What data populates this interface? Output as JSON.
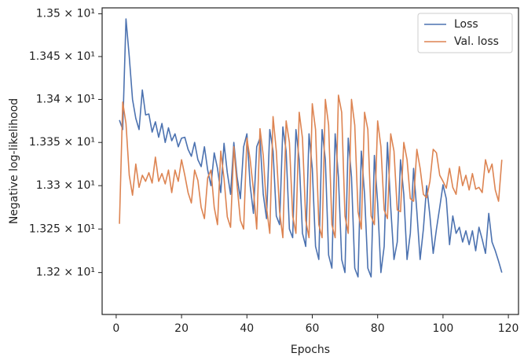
{
  "chart_data": {
    "type": "line",
    "xlabel": "Epochs",
    "ylabel": "Negative log-likelihood",
    "x": [
      1,
      2,
      3,
      4,
      5,
      6,
      7,
      8,
      9,
      10,
      11,
      12,
      13,
      14,
      15,
      16,
      17,
      18,
      19,
      20,
      21,
      22,
      23,
      24,
      25,
      26,
      27,
      28,
      29,
      30,
      31,
      32,
      33,
      34,
      35,
      36,
      37,
      38,
      39,
      40,
      41,
      42,
      43,
      44,
      45,
      46,
      47,
      48,
      49,
      50,
      51,
      52,
      53,
      54,
      55,
      56,
      57,
      58,
      59,
      60,
      61,
      62,
      63,
      64,
      65,
      66,
      67,
      68,
      69,
      70,
      71,
      72,
      73,
      74,
      75,
      76,
      77,
      78,
      79,
      80,
      81,
      82,
      83,
      84,
      85,
      86,
      87,
      88,
      89,
      90,
      91,
      92,
      93,
      94,
      95,
      96,
      97,
      98,
      99,
      100,
      101,
      102,
      103,
      104,
      105,
      106,
      107,
      108,
      109,
      110,
      111,
      112,
      113,
      114,
      115,
      116,
      117,
      118
    ],
    "series": [
      {
        "name": "Loss",
        "color": "#4c72b0",
        "values": [
          13.376,
          13.365,
          13.494,
          13.45,
          13.4,
          13.378,
          13.365,
          13.411,
          13.382,
          13.383,
          13.362,
          13.374,
          13.356,
          13.372,
          13.35,
          13.367,
          13.352,
          13.36,
          13.345,
          13.355,
          13.356,
          13.342,
          13.334,
          13.35,
          13.33,
          13.322,
          13.345,
          13.318,
          13.3,
          13.338,
          13.32,
          13.292,
          13.349,
          13.315,
          13.29,
          13.35,
          13.31,
          13.285,
          13.345,
          13.36,
          13.3,
          13.268,
          13.345,
          13.355,
          13.29,
          13.262,
          13.365,
          13.34,
          13.265,
          13.255,
          13.368,
          13.34,
          13.25,
          13.24,
          13.365,
          13.33,
          13.245,
          13.23,
          13.36,
          13.32,
          13.23,
          13.215,
          13.365,
          13.33,
          13.22,
          13.205,
          13.36,
          13.31,
          13.215,
          13.2,
          13.355,
          13.31,
          13.205,
          13.195,
          13.34,
          13.29,
          13.205,
          13.195,
          13.335,
          13.28,
          13.2,
          13.23,
          13.35,
          13.275,
          13.215,
          13.235,
          13.33,
          13.29,
          13.215,
          13.245,
          13.32,
          13.27,
          13.215,
          13.25,
          13.3,
          13.265,
          13.222,
          13.25,
          13.275,
          13.301,
          13.285,
          13.232,
          13.265,
          13.245,
          13.252,
          13.235,
          13.248,
          13.232,
          13.248,
          13.225,
          13.252,
          13.238,
          13.222,
          13.268,
          13.235,
          13.225,
          13.213,
          13.2
        ]
      },
      {
        "name": "Val. loss",
        "color": "#dd8452",
        "values": [
          13.256,
          13.397,
          13.372,
          13.312,
          13.289,
          13.325,
          13.298,
          13.312,
          13.305,
          13.315,
          13.303,
          13.333,
          13.305,
          13.314,
          13.302,
          13.318,
          13.292,
          13.318,
          13.305,
          13.33,
          13.312,
          13.292,
          13.28,
          13.318,
          13.306,
          13.275,
          13.262,
          13.309,
          13.318,
          13.275,
          13.255,
          13.34,
          13.308,
          13.264,
          13.252,
          13.345,
          13.3,
          13.26,
          13.25,
          13.355,
          13.33,
          13.295,
          13.25,
          13.366,
          13.335,
          13.275,
          13.245,
          13.38,
          13.34,
          13.27,
          13.24,
          13.375,
          13.35,
          13.265,
          13.245,
          13.385,
          13.355,
          13.26,
          13.24,
          13.395,
          13.365,
          13.255,
          13.24,
          13.4,
          13.37,
          13.255,
          13.24,
          13.405,
          13.385,
          13.265,
          13.245,
          13.4,
          13.37,
          13.27,
          13.25,
          13.385,
          13.365,
          13.265,
          13.255,
          13.375,
          13.345,
          13.272,
          13.262,
          13.36,
          13.34,
          13.272,
          13.27,
          13.35,
          13.33,
          13.285,
          13.282,
          13.342,
          13.32,
          13.29,
          13.286,
          13.305,
          13.342,
          13.338,
          13.312,
          13.305,
          13.297,
          13.32,
          13.298,
          13.29,
          13.322,
          13.3,
          13.312,
          13.295,
          13.314,
          13.296,
          13.298,
          13.292,
          13.33,
          13.315,
          13.325,
          13.295,
          13.282,
          13.33
        ]
      }
    ],
    "xlim": [
      -4.3,
      123.1
    ],
    "xticks": [
      0,
      20,
      40,
      60,
      80,
      100,
      120
    ],
    "ylim": [
      13.152,
      13.507
    ],
    "ylog": true,
    "yticks": [
      {
        "value": 13.2,
        "label": "1.32 × 10¹"
      },
      {
        "value": 13.25,
        "label": "1.325 × 10¹"
      },
      {
        "value": 13.3,
        "label": "1.33 × 10¹"
      },
      {
        "value": 13.35,
        "label": "1.335 × 10¹"
      },
      {
        "value": 13.4,
        "label": "1.34 × 10¹"
      },
      {
        "value": 13.45,
        "label": "1.345 × 10¹"
      },
      {
        "value": 13.5,
        "label": "1.35 × 10¹"
      }
    ],
    "grid": false,
    "legend": "upper right"
  }
}
